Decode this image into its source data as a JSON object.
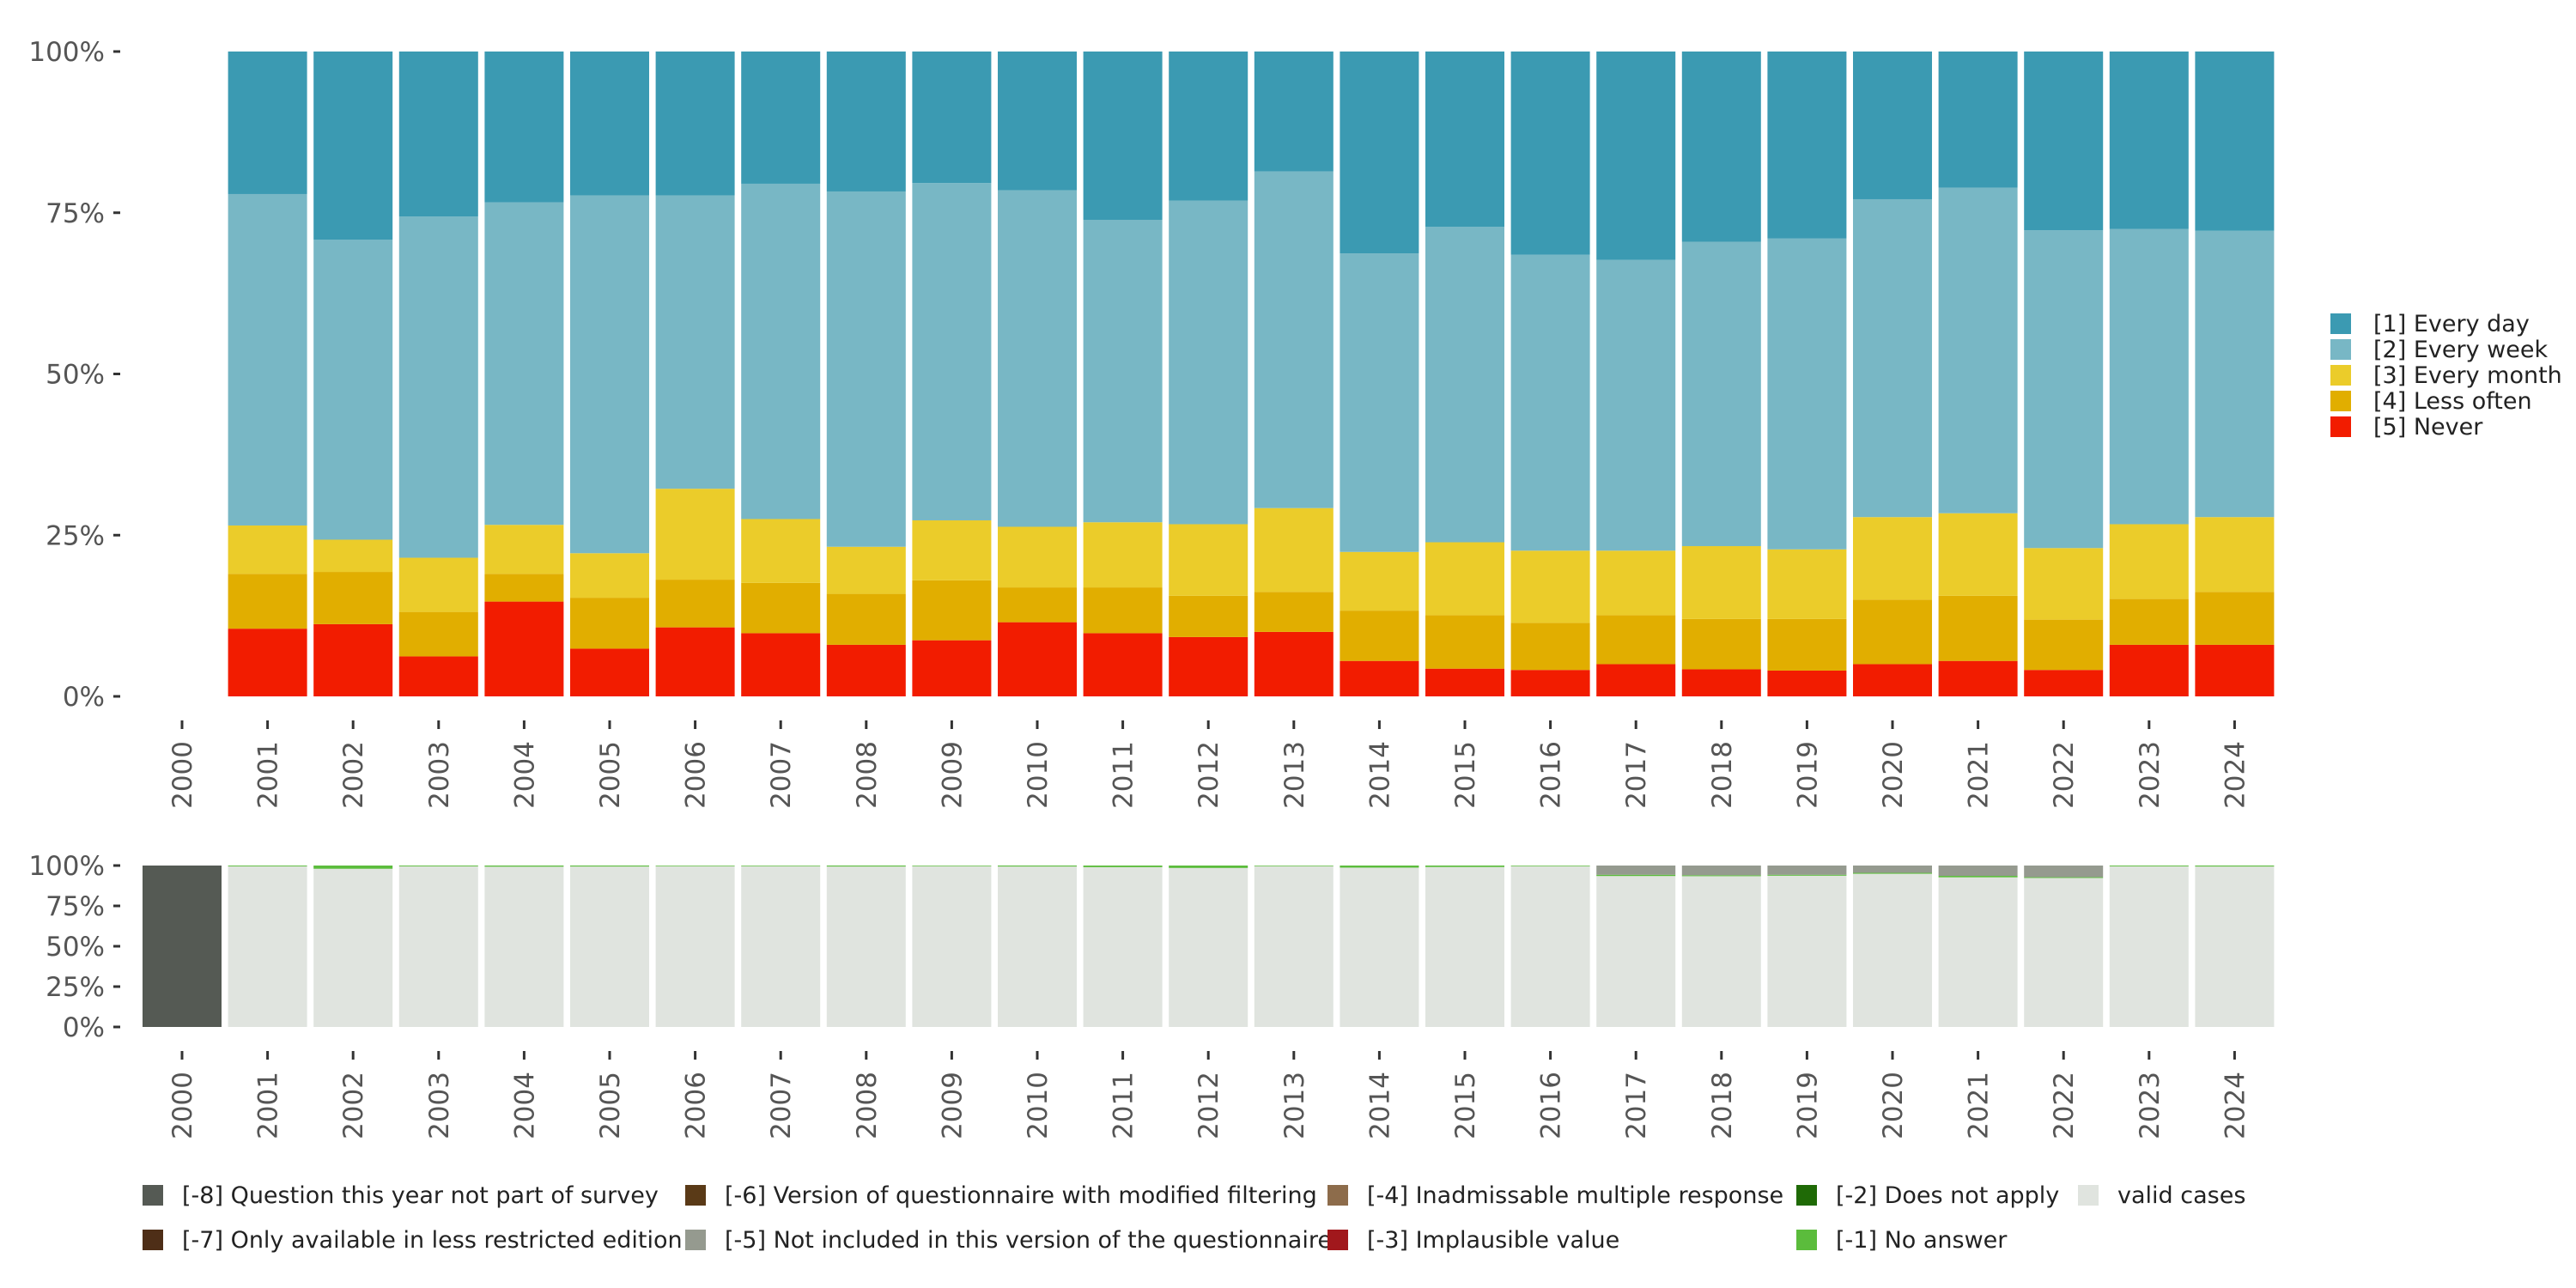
{
  "chart_data": [
    {
      "type": "bar",
      "stacked": true,
      "title": "",
      "xlabel": "",
      "ylabel": "",
      "ylim": [
        0,
        100
      ],
      "yticks": [
        "0%",
        "25%",
        "50%",
        "75%",
        "100%"
      ],
      "categories": [
        "2000",
        "2001",
        "2002",
        "2003",
        "2004",
        "2005",
        "2006",
        "2007",
        "2008",
        "2009",
        "2010",
        "2011",
        "2012",
        "2013",
        "2014",
        "2015",
        "2016",
        "2017",
        "2018",
        "2019",
        "2020",
        "2021",
        "2022",
        "2023",
        "2024"
      ],
      "legend_position": "right",
      "series": [
        {
          "name": "[5] Never",
          "color": "#f21c00",
          "values": [
            0,
            10.5,
            11.2,
            6.2,
            14.7,
            7.4,
            10.7,
            9.8,
            8.0,
            8.7,
            11.5,
            9.8,
            9.2,
            10.0,
            5.5,
            4.3,
            4.1,
            5.0,
            4.2,
            4.0,
            5.0,
            5.5,
            4.1,
            8.0,
            8.0
          ]
        },
        {
          "name": "[4] Less often",
          "color": "#e1ae00",
          "values": [
            0,
            8.5,
            8.1,
            6.9,
            4.3,
            7.9,
            7.4,
            7.8,
            7.9,
            9.3,
            5.4,
            7.1,
            6.4,
            6.2,
            7.8,
            8.3,
            7.3,
            7.6,
            7.8,
            8.0,
            10.0,
            10.1,
            7.8,
            7.1,
            8.2
          ]
        },
        {
          "name": "[3] Every month",
          "color": "#ebcc2a",
          "values": [
            0,
            7.5,
            5.0,
            8.4,
            7.6,
            6.9,
            14.1,
            9.9,
            7.3,
            9.3,
            9.4,
            10.1,
            11.1,
            13.0,
            9.1,
            11.3,
            11.2,
            10.0,
            11.3,
            10.8,
            12.8,
            12.8,
            11.1,
            11.6,
            11.6
          ]
        },
        {
          "name": "[2] Every week",
          "color": "#78b7c5",
          "values": [
            0,
            51.4,
            46.5,
            52.9,
            50.0,
            55.5,
            45.5,
            52.0,
            55.1,
            52.3,
            52.2,
            46.9,
            50.2,
            52.2,
            46.3,
            48.9,
            45.9,
            45.1,
            47.2,
            48.2,
            49.3,
            50.5,
            49.3,
            45.8,
            44.4
          ]
        },
        {
          "name": "[1] Every day",
          "color": "#3b9ab2",
          "values": [
            0,
            22.1,
            29.2,
            25.6,
            23.4,
            22.3,
            22.3,
            20.5,
            21.7,
            20.4,
            21.5,
            26.1,
            23.1,
            18.6,
            31.3,
            27.2,
            31.5,
            32.3,
            29.5,
            29.0,
            22.9,
            21.1,
            27.7,
            27.5,
            27.8
          ]
        }
      ]
    },
    {
      "type": "bar",
      "stacked": true,
      "title": "",
      "xlabel": "",
      "ylabel": "",
      "ylim": [
        0,
        100
      ],
      "yticks": [
        "0%",
        "25%",
        "50%",
        "75%",
        "100%"
      ],
      "categories": [
        "2000",
        "2001",
        "2002",
        "2003",
        "2004",
        "2005",
        "2006",
        "2007",
        "2008",
        "2009",
        "2010",
        "2011",
        "2012",
        "2013",
        "2014",
        "2015",
        "2016",
        "2017",
        "2018",
        "2019",
        "2020",
        "2021",
        "2022",
        "2023",
        "2024"
      ],
      "legend_position": "bottom",
      "series": [
        {
          "name": "valid cases",
          "color": "#e0e4df",
          "values": [
            0,
            99.5,
            98.0,
            99.5,
            99.3,
            99.4,
            99.6,
            99.6,
            99.4,
            99.6,
            99.4,
            99.0,
            98.5,
            99.6,
            98.7,
            99.1,
            99.6,
            93.5,
            93.4,
            93.7,
            94.9,
            92.7,
            92.3,
            99.5,
            99.4
          ]
        },
        {
          "name": "[-1] No answer",
          "color": "#5bbc3c",
          "values": [
            0,
            0.5,
            2.0,
            0.5,
            0.7,
            0.6,
            0.4,
            0.4,
            0.6,
            0.4,
            0.6,
            1.0,
            1.5,
            0.4,
            1.3,
            0.9,
            0.4,
            0.8,
            0.6,
            0.6,
            0.6,
            0.9,
            0.5,
            0.5,
            0.6
          ]
        },
        {
          "name": "[-2] Does not apply",
          "color": "#1f6a06",
          "values": [
            0,
            0,
            0,
            0,
            0,
            0,
            0,
            0,
            0,
            0,
            0,
            0,
            0,
            0,
            0,
            0,
            0,
            0,
            0,
            0,
            0,
            0,
            0,
            0,
            0
          ]
        },
        {
          "name": "[-3] Implausible value",
          "color": "#a1181c",
          "values": [
            0,
            0,
            0,
            0,
            0,
            0,
            0,
            0,
            0,
            0,
            0,
            0,
            0,
            0,
            0,
            0,
            0,
            0,
            0,
            0,
            0,
            0,
            0,
            0,
            0
          ]
        },
        {
          "name": "[-4] Inadmissable multiple response",
          "color": "#8d6c4b",
          "values": [
            0,
            0,
            0,
            0,
            0,
            0,
            0,
            0,
            0,
            0,
            0,
            0,
            0,
            0,
            0,
            0,
            0,
            0,
            0,
            0,
            0,
            0,
            0,
            0,
            0
          ]
        },
        {
          "name": "[-5] Not included in this version of the questionnaire",
          "color": "#959a8f",
          "values": [
            0,
            0,
            0,
            0,
            0,
            0,
            0,
            0,
            0,
            0,
            0,
            0,
            0,
            0,
            0,
            0,
            0,
            5.7,
            6.0,
            5.7,
            4.5,
            6.4,
            7.2,
            0,
            0
          ]
        },
        {
          "name": "[-6] Version of questionnaire with modified filtering",
          "color": "#5a3a17",
          "values": [
            0,
            0,
            0,
            0,
            0,
            0,
            0,
            0,
            0,
            0,
            0,
            0,
            0,
            0,
            0,
            0,
            0,
            0,
            0,
            0,
            0,
            0,
            0,
            0,
            0
          ]
        },
        {
          "name": "[-7] Only available in less restricted edition",
          "color": "#4e2e17",
          "values": [
            0,
            0,
            0,
            0,
            0,
            0,
            0,
            0,
            0,
            0,
            0,
            0,
            0,
            0,
            0,
            0,
            0,
            0,
            0,
            0,
            0,
            0,
            0,
            0,
            0
          ]
        },
        {
          "name": "[-8] Question this year not part of survey",
          "color": "#555a54",
          "values": [
            100,
            0,
            0,
            0,
            0,
            0,
            0,
            0,
            0,
            0,
            0,
            0,
            0,
            0,
            0,
            0,
            0,
            0,
            0,
            0,
            0,
            0,
            0,
            0,
            0
          ]
        }
      ],
      "legend_order": [
        "[-8] Question this year not part of survey",
        "[-6] Version of questionnaire with modified filtering",
        "[-4] Inadmissable multiple response",
        "[-2] Does not apply",
        "valid cases",
        "[-7] Only available in less restricted edition",
        "[-5] Not included in this version of the questionnaire",
        "[-3] Implausible value",
        "[-1] No answer"
      ]
    }
  ]
}
